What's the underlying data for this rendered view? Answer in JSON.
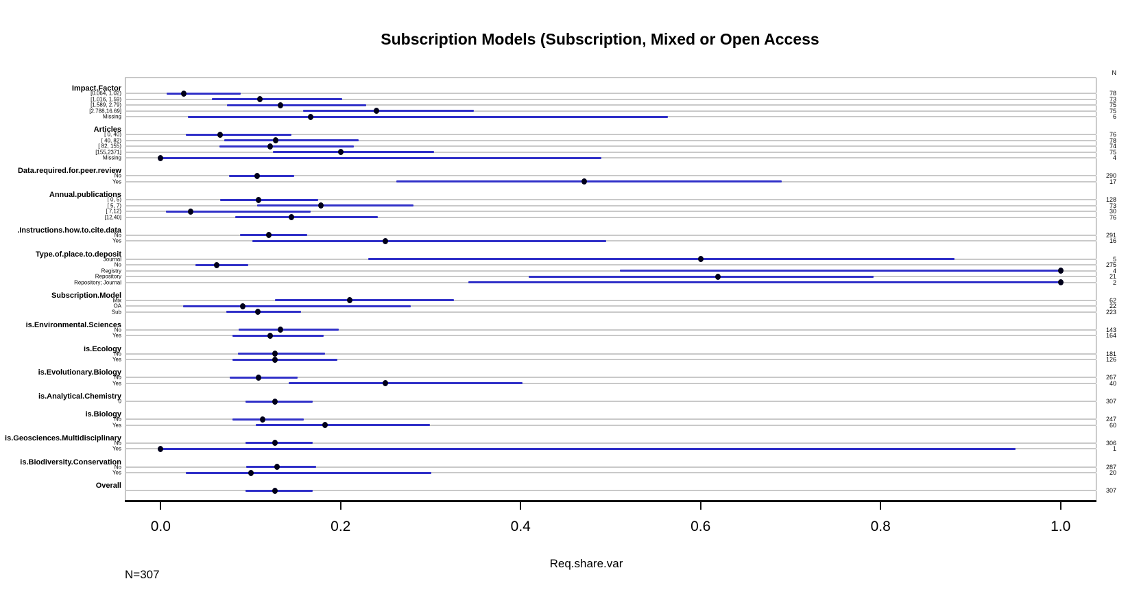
{
  "title": "Subscription Models (Subscription, Mixed or Open Access",
  "footer_n": "N=307",
  "n_col_header": "N",
  "colors": {
    "ci_line": "#3030c8",
    "point": "#00001a",
    "reference_line": "#c9c9c9",
    "axis": "#111111"
  },
  "chart_data": {
    "type": "scatter",
    "subtype": "forest-dotplot",
    "title": "Subscription Models (Subscription, Mixed or Open Access",
    "xlabel": "Req.share.var",
    "ylabel": "",
    "xlim": [
      -0.04,
      1.04
    ],
    "x_ticks": [
      0.0,
      0.2,
      0.4,
      0.6,
      0.8,
      1.0
    ],
    "x_tick_labels": [
      "0.0",
      "0.2",
      "0.4",
      "0.6",
      "0.8",
      "1.0"
    ],
    "grid": "per-row gray reference lines",
    "legend": "none",
    "right_column_header": "N",
    "total_n": 307,
    "sections": [
      {
        "label": "Impact.Factor",
        "rows": [
          {
            "label": "[0.064, 1.02)",
            "n": 78,
            "est": 0.026,
            "lo": 0.007,
            "hi": 0.089
          },
          {
            "label": "[1.016, 1.59)",
            "n": 73,
            "est": 0.11,
            "lo": 0.057,
            "hi": 0.202
          },
          {
            "label": "[1.589, 2.79)",
            "n": 75,
            "est": 0.133,
            "lo": 0.074,
            "hi": 0.228
          },
          {
            "label": "[2.788,16.69]",
            "n": 75,
            "est": 0.24,
            "lo": 0.158,
            "hi": 0.348
          },
          {
            "label": "Missing",
            "n": 6,
            "est": 0.167,
            "lo": 0.03,
            "hi": 0.564
          }
        ]
      },
      {
        "label": "Articles",
        "rows": [
          {
            "label": "[ 0,  40)",
            "n": 76,
            "est": 0.066,
            "lo": 0.028,
            "hi": 0.145
          },
          {
            "label": "[ 40,  82)",
            "n": 78,
            "est": 0.128,
            "lo": 0.071,
            "hi": 0.22
          },
          {
            "label": "[ 82, 155)",
            "n": 74,
            "est": 0.122,
            "lo": 0.065,
            "hi": 0.215
          },
          {
            "label": "[155,2371]",
            "n": 75,
            "est": 0.2,
            "lo": 0.125,
            "hi": 0.304
          },
          {
            "label": "Missing",
            "n": 4,
            "est": 0.0,
            "lo": 0.0,
            "hi": 0.49
          }
        ]
      },
      {
        "label": "Data.required.for.peer.review",
        "rows": [
          {
            "label": "No",
            "n": 290,
            "est": 0.107,
            "lo": 0.076,
            "hi": 0.148
          },
          {
            "label": "Yes",
            "n": 17,
            "est": 0.471,
            "lo": 0.262,
            "hi": 0.69
          }
        ]
      },
      {
        "label": "Annual.publications",
        "rows": [
          {
            "label": "[ 0, 5)",
            "n": 128,
            "est": 0.109,
            "lo": 0.066,
            "hi": 0.175
          },
          {
            "label": "[ 5, 7)",
            "n": 73,
            "est": 0.178,
            "lo": 0.107,
            "hi": 0.281
          },
          {
            "label": "[ 7,12)",
            "n": 30,
            "est": 0.033,
            "lo": 0.006,
            "hi": 0.167
          },
          {
            "label": "[12,40]",
            "n": 76,
            "est": 0.145,
            "lo": 0.083,
            "hi": 0.241
          }
        ]
      },
      {
        "label": "Instructions.how.to.cite.data.",
        "rows": [
          {
            "label": "No",
            "n": 291,
            "est": 0.12,
            "lo": 0.088,
            "hi": 0.163
          },
          {
            "label": "Yes",
            "n": 16,
            "est": 0.25,
            "lo": 0.102,
            "hi": 0.495
          }
        ]
      },
      {
        "label": "Type.of.place.to.deposit",
        "rows": [
          {
            "label": "Journal",
            "n": 5,
            "est": 0.6,
            "lo": 0.231,
            "hi": 0.882
          },
          {
            "label": "No",
            "n": 275,
            "est": 0.062,
            "lo": 0.039,
            "hi": 0.097
          },
          {
            "label": "Registry",
            "n": 4,
            "est": 1.0,
            "lo": 0.51,
            "hi": 1.0
          },
          {
            "label": "Repository",
            "n": 21,
            "est": 0.619,
            "lo": 0.409,
            "hi": 0.792
          },
          {
            "label": "Repository; Journal",
            "n": 2,
            "est": 1.0,
            "lo": 0.342,
            "hi": 1.0
          }
        ]
      },
      {
        "label": "Subscription.Model",
        "rows": [
          {
            "label": "Mix",
            "n": 62,
            "est": 0.21,
            "lo": 0.127,
            "hi": 0.326
          },
          {
            "label": "OA",
            "n": 22,
            "est": 0.091,
            "lo": 0.025,
            "hi": 0.278
          },
          {
            "label": "Sub",
            "n": 223,
            "est": 0.108,
            "lo": 0.073,
            "hi": 0.156
          }
        ]
      },
      {
        "label": "is.Environmental.Sciences",
        "rows": [
          {
            "label": "No",
            "n": 143,
            "est": 0.133,
            "lo": 0.087,
            "hi": 0.198
          },
          {
            "label": "Yes",
            "n": 164,
            "est": 0.122,
            "lo": 0.08,
            "hi": 0.181
          }
        ]
      },
      {
        "label": "is.Ecology",
        "rows": [
          {
            "label": "No",
            "n": 181,
            "est": 0.127,
            "lo": 0.086,
            "hi": 0.183
          },
          {
            "label": "Yes",
            "n": 126,
            "est": 0.127,
            "lo": 0.08,
            "hi": 0.196
          }
        ]
      },
      {
        "label": "is.Evolutionary.Biology",
        "rows": [
          {
            "label": "No",
            "n": 267,
            "est": 0.109,
            "lo": 0.077,
            "hi": 0.152
          },
          {
            "label": "Yes",
            "n": 40,
            "est": 0.25,
            "lo": 0.142,
            "hi": 0.402
          }
        ]
      },
      {
        "label": "is.Analytical.Chemistry",
        "rows": [
          {
            "label": "0",
            "n": 307,
            "est": 0.127,
            "lo": 0.094,
            "hi": 0.169
          }
        ]
      },
      {
        "label": "is.Biology",
        "rows": [
          {
            "label": "No",
            "n": 247,
            "est": 0.113,
            "lo": 0.08,
            "hi": 0.159
          },
          {
            "label": "Yes",
            "n": 60,
            "est": 0.183,
            "lo": 0.106,
            "hi": 0.299
          }
        ]
      },
      {
        "label": "is.Geosciences.Multidisciplinary",
        "rows": [
          {
            "label": "No",
            "n": 306,
            "est": 0.127,
            "lo": 0.094,
            "hi": 0.169
          },
          {
            "label": "Yes",
            "n": 1,
            "est": 0.0,
            "lo": 0.0,
            "hi": 0.95
          }
        ]
      },
      {
        "label": "is.Biodiversity.Conservation",
        "rows": [
          {
            "label": "No",
            "n": 287,
            "est": 0.129,
            "lo": 0.095,
            "hi": 0.173
          },
          {
            "label": "Yes",
            "n": 20,
            "est": 0.1,
            "lo": 0.028,
            "hi": 0.301
          }
        ]
      },
      {
        "label": "Overall",
        "rows": [
          {
            "label": "",
            "n": 307,
            "est": 0.127,
            "lo": 0.094,
            "hi": 0.169
          }
        ]
      }
    ]
  }
}
